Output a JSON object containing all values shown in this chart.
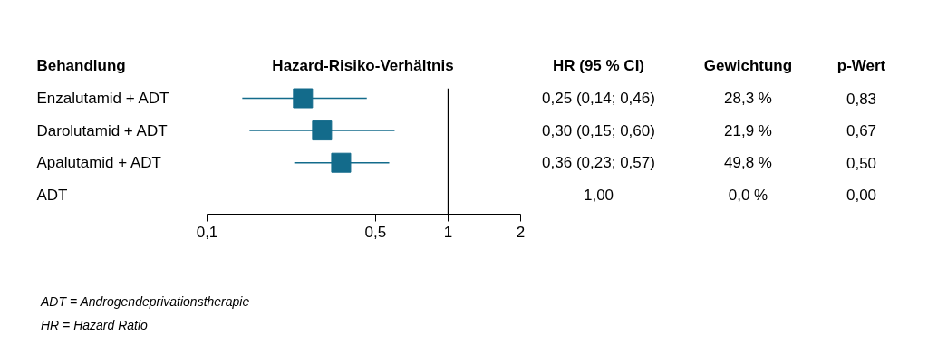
{
  "chart_data": {
    "type": "scatter",
    "orientation": "horizontal",
    "xlabel": "Hazard-Risiko-Verhältnis",
    "ylabel": "Behandlung",
    "categories": [
      "Enzalutamid + ADT",
      "Darolutamid + ADT",
      "Apalutamid + ADT",
      "ADT"
    ],
    "values": [
      0.25,
      0.3,
      0.36,
      null
    ],
    "errors": [
      [
        0.14,
        0.46
      ],
      [
        0.15,
        0.6
      ],
      [
        0.23,
        0.57
      ],
      null
    ],
    "value_labels": [
      "0,25 (0,14; 0,46)",
      "0,30 (0,15; 0,60)",
      "0,36 (0,23; 0,57)",
      "1,00"
    ],
    "color": "#136b8b",
    "marker": "square",
    "log": "x",
    "xlim": [
      0.1,
      2
    ],
    "xticks": [
      {
        "value": 0.1,
        "label": "0,1"
      },
      {
        "value": 0.5,
        "label": "0,5"
      },
      1,
      2
    ],
    "ref_lines": [
      {
        "axis": "x",
        "value": 1,
        "color": "#000000"
      }
    ],
    "grid": false,
    "annotations": [
      "HR (95 % CI)",
      "Gewichtung",
      "p-Wert",
      "28,3 %",
      "21,9 %",
      "49,8 %",
      "0,0 %",
      "0,83",
      "0,67",
      "0,50",
      "0,00",
      "ADT = Androgendeprivationstherapie",
      "HR = Hazard Ratio"
    ]
  }
}
